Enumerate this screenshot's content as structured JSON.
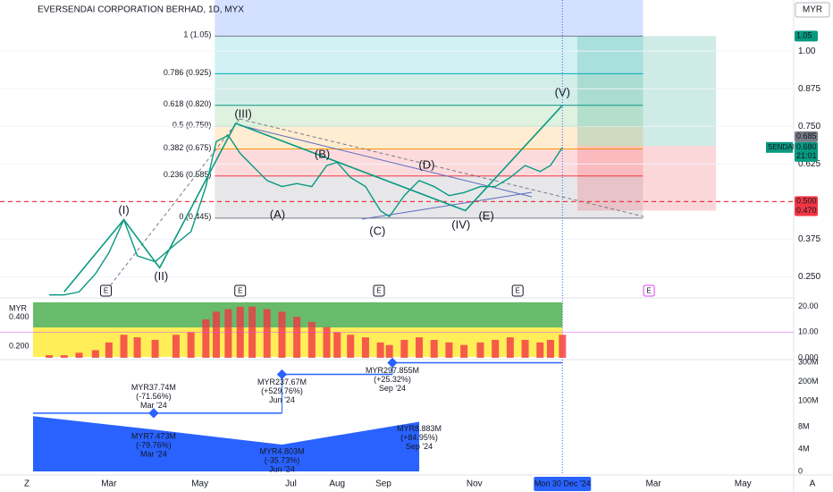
{
  "chart_data": {
    "type": "line",
    "title": "EVERSENDAI CORPORATION BERHAD, 1D, MYX",
    "currency": "MYR",
    "x": [
      20,
      30,
      40,
      51,
      60,
      70,
      79,
      91,
      105,
      115,
      125,
      132,
      140,
      148,
      156,
      166,
      176,
      186,
      196,
      206,
      213,
      222,
      232,
      242,
      248,
      258,
      268,
      278,
      288,
      298,
      309,
      319,
      329,
      339,
      349,
      356,
      364
    ],
    "series": [
      {
        "name": "SENDAI",
        "color": "#089981",
        "values": [
          0.19,
          0.19,
          0.2,
          0.26,
          0.33,
          0.44,
          0.32,
          0.3,
          0.36,
          0.4,
          0.55,
          0.7,
          0.72,
          0.66,
          0.62,
          0.57,
          0.55,
          0.56,
          0.55,
          0.62,
          0.63,
          0.58,
          0.55,
          0.47,
          0.45,
          0.52,
          0.57,
          0.55,
          0.52,
          0.53,
          0.55,
          0.55,
          0.58,
          0.62,
          0.6,
          0.62,
          0.68
        ]
      }
    ],
    "xlim": [
      -13,
      519
    ],
    "xticks": [
      {
        "value": 60,
        "label": "Mar"
      },
      {
        "value": 121,
        "label": "May"
      },
      {
        "value": 182,
        "label": "Jul"
      },
      {
        "value": 213,
        "label": "Aug"
      },
      {
        "value": 244,
        "label": "Sep"
      },
      {
        "value": 305,
        "label": "Nov"
      },
      {
        "value": 425,
        "label": "Mar"
      },
      {
        "value": 485,
        "label": "May"
      }
    ],
    "ylim": [
      0.18,
      1.17
    ],
    "yticks": [
      {
        "value": 1,
        "label": "1.00"
      },
      0.875,
      {
        "value": 0.75,
        "label": "0.750"
      },
      0.625,
      0.375,
      {
        "value": 0.25,
        "label": "0.250"
      }
    ],
    "fib_range": [
      131,
      418
    ],
    "fib_levels": [
      {
        "label": "1 (1.05)",
        "value": 1.05,
        "color": "#787b86"
      },
      {
        "label": "0.786 (0.925)",
        "value": 0.925,
        "color": "#00acc1"
      },
      {
        "label": "0.618 (0.820)",
        "value": 0.82,
        "color": "#089981"
      },
      {
        "label": "0.5 (0.750)",
        "value": 0.75,
        "color": "#4caf50"
      },
      {
        "label": "0.382 (0.675)",
        "value": 0.675,
        "color": "#ff9800"
      },
      {
        "label": "0.236 (0.585)",
        "value": 0.585,
        "color": "#f23645"
      },
      {
        "label": "0 (0.445)",
        "value": 0.445,
        "color": "#787b86"
      }
    ],
    "wave_path": {
      "x": [
        30,
        70,
        94,
        145,
        299,
        364
      ],
      "values": [
        0.2,
        0.44,
        0.28,
        0.76,
        0.47,
        0.82
      ],
      "color": "#089981"
    },
    "waves": [
      {
        "label": "(I)",
        "x": 70,
        "y": 0.47,
        "color": "#089981"
      },
      {
        "label": "(II)",
        "x": 95,
        "y": 0.25,
        "color": "#089981"
      },
      {
        "label": "(III)",
        "x": 150,
        "y": 0.79,
        "color": "#089981"
      },
      {
        "label": "(IV)",
        "x": 296,
        "y": 0.42,
        "color": "#089981"
      },
      {
        "label": "(V)",
        "x": 364,
        "y": 0.86,
        "color": "#089981"
      },
      {
        "label": "(A)",
        "x": 173,
        "y": 0.455,
        "color": "#e8833a"
      },
      {
        "label": "(B)",
        "x": 203,
        "y": 0.655,
        "color": "#e8833a"
      },
      {
        "label": "(C)",
        "x": 240,
        "y": 0.4,
        "color": "#e8833a"
      },
      {
        "label": "(D)",
        "x": 273,
        "y": 0.62,
        "color": "#e8833a"
      },
      {
        "label": "(E)",
        "x": 313,
        "y": 0.45,
        "color": "#e8833a"
      }
    ],
    "position": {
      "x": [
        374,
        467
      ],
      "target": 1.05,
      "entry": 0.685,
      "stop": 0.47
    },
    "price_badges": [
      {
        "label": "1.05",
        "value": 1.05,
        "color": "#089981"
      },
      {
        "label": "0.685",
        "value": 0.685,
        "color": "#787b86"
      },
      {
        "label": "0.500",
        "value": 0.5,
        "color": "#f23645"
      },
      {
        "label": "0.470",
        "value": 0.47,
        "color": "#f23645"
      }
    ],
    "last_price": {
      "value": 0.68,
      "label": "0.680",
      "countdown": "21:01"
    },
    "earnings": {
      "label": "E",
      "x": [
        58,
        148,
        241,
        334,
        422
      ]
    },
    "crosshair": {
      "x": 364,
      "label": "Mon 30 Dec '24"
    },
    "corner_left": "Z",
    "corner_right": "A",
    "indicator": {
      "label": "MYR",
      "ylim": [
        0,
        22
      ],
      "yticks": [
        {
          "value": 20,
          "label": "20.00"
        },
        {
          "value": 10,
          "label": "10.00"
        },
        {
          "value": 0,
          "label": "0.000"
        }
      ],
      "left_ylim": [
        0.12,
        0.51
      ],
      "left_yticks": [
        {
          "value": 0.4,
          "label": "0.400"
        },
        {
          "value": 0.2,
          "label": "0.200"
        }
      ],
      "color": "#f23645",
      "values": [
        1,
        1,
        2,
        3,
        6,
        9,
        8,
        7,
        9,
        10,
        15,
        18,
        19,
        20,
        20,
        19,
        18,
        16,
        14,
        12,
        10,
        9,
        8,
        6,
        5,
        7,
        8,
        7,
        6,
        5,
        6,
        7,
        8,
        7,
        6,
        7,
        9
      ]
    },
    "revenue": {
      "ylim": [
        0,
        314
      ],
      "yticks": [
        {
          "value": 300,
          "label": "300M"
        },
        {
          "value": 200,
          "label": "200M"
        },
        {
          "value": 100,
          "label": "100M"
        }
      ],
      "points": [
        {
          "x": 90,
          "value": 37.74,
          "label": "MYR37.74M",
          "change": "(-71.56%)",
          "period": "Mar '24"
        },
        {
          "x": 176,
          "value": 237.67,
          "label": "MYR237.67M",
          "change": "(+529.76%)",
          "period": "Jun '24"
        },
        {
          "x": 250,
          "value": 297.855,
          "label": "MYR297.855M",
          "change": "(+25.32%)",
          "period": "Sep '24"
        }
      ]
    },
    "net_income": {
      "ylim": [
        -0.48,
        9.76
      ],
      "yticks": [
        {
          "value": 8,
          "label": "8M"
        },
        {
          "value": 4,
          "label": "4M"
        },
        0
      ],
      "points": [
        {
          "x": 90,
          "value": 7.473,
          "label": "MYR7.473M",
          "change": "(-79.76%)",
          "period": "Mar '24"
        },
        {
          "x": 176,
          "value": 4.803,
          "label": "MYR4.803M",
          "change": "(-35.73%)",
          "period": "Jun '24"
        },
        {
          "x": 268,
          "value": 8.883,
          "label": "MYR8.883M",
          "change": "(+84.95%)",
          "period": "Sep '24"
        }
      ]
    }
  }
}
